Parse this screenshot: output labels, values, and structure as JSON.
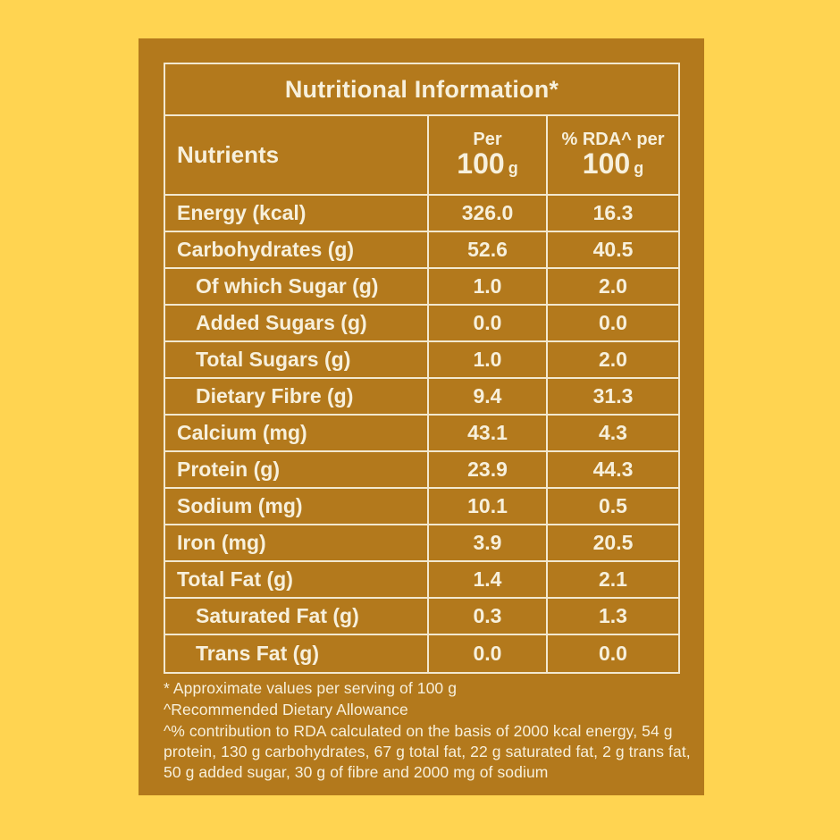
{
  "colors": {
    "background": "#FFD451",
    "panel": "#B3791C",
    "line": "#F2E8CF",
    "text": "#F7F0DC"
  },
  "table": {
    "title": "Nutritional Information*",
    "header": {
      "nutrients": "Nutrients",
      "per": {
        "line1": "Per",
        "value": "100",
        "unit": "g"
      },
      "rda": {
        "line1": "% RDA^ per",
        "value": "100",
        "unit": "g"
      }
    },
    "rows": [
      {
        "label": "Energy (kcal)",
        "per100": "326.0",
        "rda": "16.3"
      },
      {
        "label": "Carbohydrates (g)",
        "per100": "52.6",
        "rda": "40.5"
      },
      {
        "label": "Of which Sugar (g)",
        "per100": "1.0",
        "rda": "2.0"
      },
      {
        "label": "Added Sugars (g)",
        "per100": "0.0",
        "rda": "0.0"
      },
      {
        "label": "Total Sugars (g)",
        "per100": "1.0",
        "rda": "2.0"
      },
      {
        "label": "Dietary Fibre (g)",
        "per100": "9.4",
        "rda": "31.3"
      },
      {
        "label": "Calcium (mg)",
        "per100": "43.1",
        "rda": "4.3"
      },
      {
        "label": "Protein (g)",
        "per100": "23.9",
        "rda": "44.3"
      },
      {
        "label": "Sodium (mg)",
        "per100": "10.1",
        "rda": "0.5"
      },
      {
        "label": "Iron (mg)",
        "per100": "3.9",
        "rda": "20.5"
      },
      {
        "label": "Total Fat (g)",
        "per100": "1.4",
        "rda": "2.1"
      },
      {
        "label": "Saturated Fat (g)",
        "per100": "0.3",
        "rda": "1.3"
      },
      {
        "label": "Trans Fat (g)",
        "per100": "0.0",
        "rda": "0.0"
      }
    ]
  },
  "footnotes": [
    "* Approximate values per serving of 100 g",
    "^Recommended Dietary Allowance",
    "^% contribution to RDA calculated on the basis of 2000 kcal energy, 54 g protein, 130 g carbohydrates, 67 g total fat, 22 g saturated fat, 2 g trans fat, 50 g added sugar, 30 g of fibre and 2000 mg of sodium"
  ]
}
